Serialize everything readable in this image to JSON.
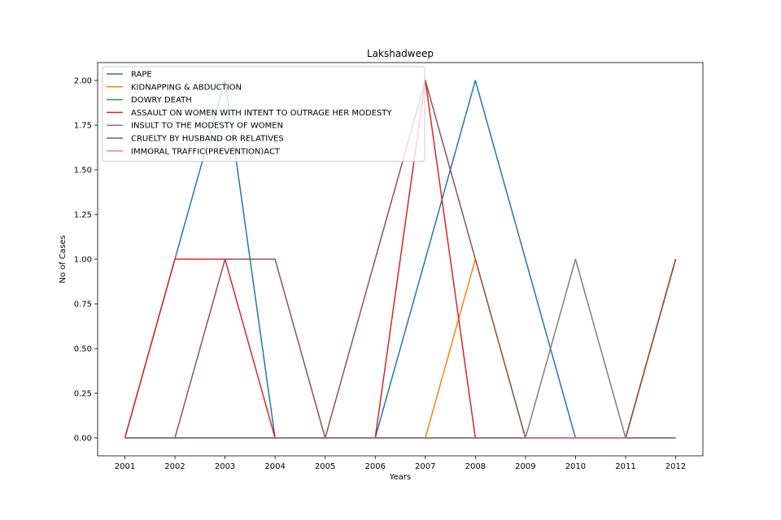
{
  "chart_data": {
    "type": "line",
    "title": "Lakshadweep",
    "xlabel": "Years",
    "ylabel": "No of Cases",
    "x": [
      "2001",
      "2002",
      "2003",
      "2004",
      "2005",
      "2006",
      "2007",
      "2008",
      "2009",
      "2010",
      "2011",
      "2012"
    ],
    "yticks": [
      "0.00",
      "0.25",
      "0.50",
      "0.75",
      "1.00",
      "1.25",
      "1.50",
      "1.75",
      "2.00"
    ],
    "ylim": [
      -0.1,
      2.1
    ],
    "grid": false,
    "legend_placement": "top-left",
    "series": [
      {
        "name": "RAPE",
        "color": "#1f77b4",
        "values": [
          0,
          1,
          2,
          0,
          0,
          0,
          1,
          2,
          1,
          0,
          0,
          1
        ]
      },
      {
        "name": "KIDNAPPING & ABDUCTION",
        "color": "#ff7f0e",
        "values": [
          0,
          0,
          0,
          0,
          0,
          0,
          0,
          1,
          0,
          0,
          0,
          1
        ]
      },
      {
        "name": "DOWRY DEATH",
        "color": "#2ca02c",
        "values": [
          0,
          0,
          0,
          0,
          0,
          0,
          0,
          0,
          0,
          0,
          0,
          0
        ]
      },
      {
        "name": "ASSAULT ON WOMEN WITH INTENT TO OUTRAGE HER MODESTY",
        "color": "#d62728",
        "values": [
          0,
          1,
          1,
          0,
          0,
          0,
          2,
          0,
          0,
          0,
          0,
          1
        ]
      },
      {
        "name": "INSULT TO THE MODESTY OF WOMEN",
        "color": "#9467bd",
        "values": [
          0,
          0,
          0,
          0,
          0,
          0,
          0,
          0,
          0,
          0,
          0,
          0
        ]
      },
      {
        "name": "CRUELTY BY HUSBAND OR RELATIVES",
        "color": "#8c564b",
        "values": [
          0,
          0,
          1,
          1,
          0,
          1,
          2,
          1,
          0,
          0,
          0,
          1
        ]
      },
      {
        "name": "IMMORAL TRAFFIC(PREVENTION)ACT",
        "color": "#e377c2",
        "values": [
          0,
          0,
          0,
          0,
          0,
          0,
          0,
          0,
          0,
          0,
          0,
          0
        ]
      },
      {
        "name": "",
        "color": "#7f7f7f",
        "values": [
          0,
          0,
          0,
          0,
          0,
          0,
          0,
          0,
          0,
          1,
          0,
          0
        ]
      }
    ]
  }
}
